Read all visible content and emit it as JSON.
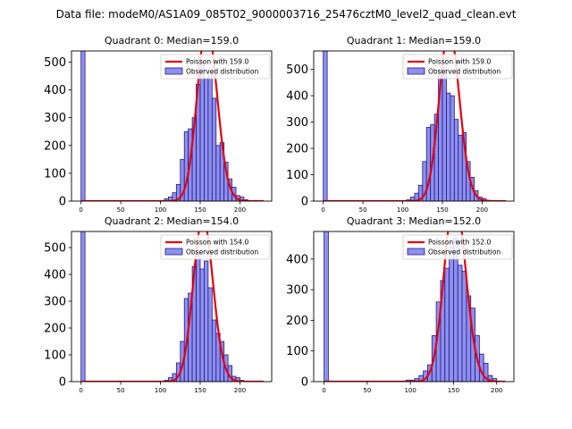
{
  "suptitle": "Data file: modeM0/AS1A09_085T02_9000003716_25476cztM0_level2_quad_clean.evt",
  "colors": {
    "bar_fill": "#7b7bea",
    "bar_edge": "#1d1d8a",
    "poisson_line": "#e8000b",
    "legend_border": "#cccccc"
  },
  "chart_data": [
    {
      "type": "bar",
      "title": "Quadrant 0: Median=159.0",
      "median": 159.0,
      "xlim": [
        -12,
        240
      ],
      "ylim": [
        0,
        540
      ],
      "xticks": [
        0,
        50,
        100,
        150,
        200
      ],
      "yticks": [
        0,
        100,
        200,
        300,
        400,
        500
      ],
      "spike": {
        "x0": 0,
        "x1": 5,
        "value": 540
      },
      "bins": {
        "start": 105,
        "width": 5,
        "values": [
          8,
          15,
          30,
          60,
          150,
          250,
          260,
          300,
          420,
          500,
          440,
          460,
          370,
          200,
          210,
          140,
          80,
          50,
          20,
          15,
          5
        ]
      },
      "legend": {
        "line_label": "Poisson with 159.0",
        "bar_label": "Observed distribution"
      }
    },
    {
      "type": "bar",
      "title": "Quadrant 1: Median=159.0",
      "median": 159.0,
      "xlim": [
        -12,
        240
      ],
      "ylim": [
        0,
        570
      ],
      "xticks": [
        0,
        50,
        100,
        150,
        200
      ],
      "yticks": [
        0,
        100,
        200,
        300,
        400,
        500
      ],
      "spike": {
        "x0": 0,
        "x1": 5,
        "value": 570
      },
      "bins": {
        "start": 105,
        "width": 5,
        "values": [
          5,
          15,
          30,
          60,
          150,
          280,
          290,
          330,
          500,
          530,
          410,
          400,
          310,
          250,
          260,
          150,
          90,
          40,
          15,
          10,
          3
        ]
      },
      "legend": {
        "line_label": "Poisson with 159.0",
        "bar_label": "Observed distribution"
      }
    },
    {
      "type": "bar",
      "title": "Quadrant 2: Median=154.0",
      "median": 154.0,
      "xlim": [
        -12,
        240
      ],
      "ylim": [
        0,
        560
      ],
      "xticks": [
        0,
        50,
        100,
        150,
        200
      ],
      "yticks": [
        0,
        100,
        200,
        300,
        400,
        500
      ],
      "spike": {
        "x0": 0,
        "x1": 5,
        "value": 560
      },
      "bins": {
        "start": 105,
        "width": 5,
        "values": [
          5,
          15,
          30,
          70,
          150,
          310,
          330,
          430,
          480,
          420,
          450,
          350,
          230,
          180,
          150,
          100,
          60,
          20,
          15,
          5
        ]
      },
      "legend": {
        "line_label": "Poisson with 154.0",
        "bar_label": "Observed distribution"
      }
    },
    {
      "type": "bar",
      "title": "Quadrant 3: Median=152.0",
      "median": 152.0,
      "xlim": [
        -12,
        220
      ],
      "ylim": [
        0,
        490
      ],
      "xticks": [
        0,
        50,
        100,
        150,
        200
      ],
      "yticks": [
        0,
        100,
        200,
        300,
        400
      ],
      "spike": {
        "x0": 0,
        "x1": 5,
        "value": 490
      },
      "bins": {
        "start": 90,
        "width": 5,
        "values": [
          2,
          5,
          5,
          10,
          20,
          35,
          55,
          150,
          260,
          330,
          370,
          440,
          470,
          380,
          360,
          280,
          240,
          150,
          90,
          60,
          20,
          10
        ]
      },
      "legend": {
        "line_label": "Poisson with 152.0",
        "bar_label": "Observed distribution"
      }
    }
  ]
}
